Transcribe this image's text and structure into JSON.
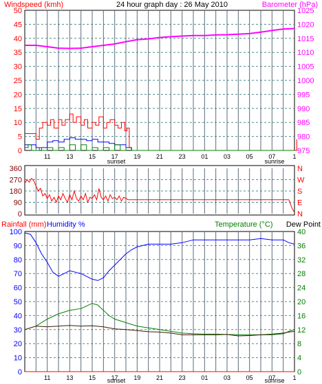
{
  "colors": {
    "red": "#ff0000",
    "magenta": "#ff00ff",
    "blue": "#0000ff",
    "green": "#008000",
    "darkred": "#800000",
    "brown": "#3a1a00",
    "grid_h": "#4a8a8a",
    "grid_v": "#5a6a7a",
    "black": "#000000"
  },
  "chart_data": [
    {
      "type": "line",
      "title": "24 hour graph day : 26 May 2010",
      "left_label": "Windspeed (kmh)",
      "right_label": "Barometer (hPa)",
      "ylim_left": [
        0,
        50
      ],
      "ylim_right": [
        975,
        1025
      ],
      "left_ticks": [
        "50",
        "45",
        "40",
        "35",
        "30",
        "25",
        "20",
        "15",
        "10",
        "5",
        "0"
      ],
      "right_ticks": [
        "1025",
        "1020",
        "1015",
        "1010",
        "1005",
        "1000",
        "995",
        "990",
        "985",
        "980",
        "975"
      ],
      "x_labels": [
        "11",
        "13",
        "15",
        "17",
        "19",
        "21",
        "23",
        "01",
        "03",
        "05",
        "07",
        "1"
      ],
      "sunset_label": "sunset",
      "sunrise_label": "sunrise",
      "series": [
        {
          "id": "barometer",
          "color": "magenta",
          "x": [
            9,
            10,
            11,
            12,
            13,
            14,
            15,
            16,
            17,
            18,
            19,
            20,
            21,
            22,
            23,
            24,
            25,
            26,
            27,
            28,
            29,
            30,
            31,
            32,
            33
          ],
          "y": [
            1012.5,
            1012.5,
            1012,
            1011.5,
            1011.4,
            1011.5,
            1012,
            1012.5,
            1013,
            1013.8,
            1014.5,
            1014.8,
            1015.3,
            1015.6,
            1015.8,
            1016,
            1016,
            1016.2,
            1016.3,
            1016.5,
            1016.7,
            1017.2,
            1017.8,
            1018.3,
            1018.5
          ]
        },
        {
          "id": "wind_gust",
          "color": "red",
          "x": [
            9,
            9.5,
            9.8,
            10,
            10.3,
            10.6,
            11,
            11.3,
            11.6,
            12,
            12.3,
            12.6,
            13,
            13.3,
            13.6,
            14,
            14.3,
            14.6,
            15,
            15.3,
            15.6,
            16,
            16.3,
            16.6,
            17,
            17.3,
            17.6,
            17.9,
            18.1,
            18.3,
            18.5,
            33,
            33.2
          ],
          "y": [
            6,
            6,
            6,
            4,
            8,
            10,
            9,
            11,
            8,
            11,
            9,
            11,
            13,
            10,
            12,
            9,
            11,
            8,
            10,
            9,
            12,
            8,
            10,
            11,
            9,
            8,
            10,
            7,
            8,
            1,
            0,
            0,
            4
          ]
        },
        {
          "id": "wind_avg",
          "color": "blue",
          "x": [
            9,
            9.5,
            10,
            10.5,
            11,
            11.5,
            12,
            12.5,
            13,
            13.5,
            14,
            14.5,
            15,
            15.5,
            16,
            16.5,
            17,
            17.5,
            18,
            18.5
          ],
          "y": [
            2,
            2,
            1,
            1,
            3,
            3.5,
            3,
            4,
            4.5,
            4,
            4,
            3.5,
            4,
            3,
            3,
            2.5,
            2,
            2,
            1,
            0
          ]
        },
        {
          "id": "wind_low",
          "color": "green",
          "x": [
            9,
            9.3,
            9.6,
            10,
            10.3,
            10.5,
            11,
            11.5,
            12,
            12.5,
            13,
            13.5,
            14,
            14.5,
            15,
            15.5,
            16,
            16.5,
            17,
            17.5,
            18,
            18.5,
            33
          ],
          "y": [
            1,
            2,
            0,
            0,
            1,
            0,
            1,
            0,
            1,
            0,
            2,
            0,
            2,
            0,
            1,
            0,
            1,
            0,
            2,
            0,
            1,
            0,
            0
          ]
        }
      ]
    },
    {
      "type": "line",
      "left_ticks": [
        "360",
        "270",
        "180",
        "90",
        "0"
      ],
      "right_ticks": [
        "N",
        "W",
        "S",
        "E",
        "N"
      ],
      "ylim": [
        0,
        360
      ],
      "series": [
        {
          "id": "wind_direction",
          "color": "red",
          "x": [
            9,
            9.2,
            9.4,
            9.6,
            9.8,
            10,
            10.2,
            10.4,
            10.6,
            10.8,
            11,
            11.2,
            11.4,
            11.6,
            11.8,
            12,
            12.2,
            12.4,
            12.6,
            12.8,
            13,
            13.2,
            13.4,
            13.6,
            13.8,
            14,
            14.2,
            14.4,
            14.6,
            14.8,
            15,
            15.2,
            15.4,
            15.6,
            15.8,
            16,
            16.2,
            16.4,
            16.6,
            16.8,
            17,
            17.2,
            17.4,
            17.6,
            17.8,
            18,
            18.2,
            32.5,
            32.8,
            33
          ],
          "y": [
            240,
            270,
            250,
            280,
            260,
            220,
            180,
            200,
            140,
            160,
            120,
            150,
            100,
            130,
            90,
            140,
            110,
            160,
            120,
            90,
            150,
            110,
            180,
            120,
            100,
            140,
            110,
            160,
            90,
            130,
            120,
            150,
            110,
            200,
            130,
            110,
            140,
            100,
            150,
            120,
            130,
            110,
            140,
            100,
            130,
            120,
            110,
            110,
            40,
            10
          ]
        }
      ]
    },
    {
      "type": "line",
      "left_label_1": "Rainfall (mm)",
      "left_label_2": "Humidity %",
      "right_label_1": "Temperature (°C)",
      "right_label_2": "Dew Point",
      "ylim_left": [
        0,
        100
      ],
      "ylim_right": [
        0,
        40
      ],
      "left_ticks": [
        "100",
        "90",
        "80",
        "70",
        "60",
        "50",
        "40",
        "30",
        "20",
        "10",
        "0"
      ],
      "right_ticks": [
        "40",
        "36",
        "32",
        "28",
        "24",
        "20",
        "16",
        "12",
        "8",
        "4",
        "0"
      ],
      "x_labels": [
        "11",
        "13",
        "15",
        "17",
        "19",
        "21",
        "23",
        "01",
        "03",
        "05",
        "07",
        "1"
      ],
      "sunset_label": "sunset",
      "sunrise_label": "sunrise",
      "series": [
        {
          "id": "humidity",
          "color": "blue",
          "x": [
            9,
            9.5,
            10,
            10.5,
            11,
            11.5,
            12,
            12.5,
            13,
            13.5,
            14,
            14.5,
            15,
            15.5,
            16,
            16.5,
            17,
            17.5,
            18,
            18.5,
            19,
            19.5,
            20,
            21,
            22,
            23,
            24,
            25,
            26,
            27,
            28,
            29,
            30,
            31,
            32,
            32.5,
            33
          ],
          "y": [
            99,
            98,
            92,
            84,
            78,
            71,
            68,
            70,
            72,
            71,
            70,
            68,
            66,
            65,
            67,
            72,
            76,
            80,
            84,
            87,
            89,
            90,
            91,
            91,
            91,
            92,
            94,
            94,
            94,
            94,
            94,
            94,
            95,
            94,
            94,
            92,
            91
          ]
        },
        {
          "id": "temperature",
          "color": "green",
          "x": [
            9,
            10,
            11,
            12,
            13,
            14,
            15,
            15.5,
            16,
            16.5,
            17,
            18,
            19,
            20,
            21,
            22,
            23,
            24,
            25,
            26,
            27,
            28,
            29,
            30,
            31,
            32,
            32.5,
            33
          ],
          "y": [
            12,
            13,
            15,
            16.5,
            17.5,
            18,
            19.5,
            19,
            17.5,
            16,
            15,
            14,
            13,
            12.5,
            12,
            11.5,
            11,
            10.8,
            10.7,
            10.7,
            10.6,
            10.5,
            10.5,
            10.5,
            10.5,
            10.8,
            11.5,
            12
          ]
        },
        {
          "id": "dew_point",
          "color": "brown",
          "x": [
            9,
            10,
            11,
            12,
            13,
            14,
            15,
            16,
            17,
            18,
            19,
            20,
            21,
            22,
            23,
            24,
            25,
            26,
            27,
            28,
            29,
            30,
            31,
            32,
            32.5,
            33
          ],
          "y": [
            12,
            13,
            12.8,
            13,
            13.2,
            13,
            13.1,
            12.8,
            12.2,
            12,
            11.7,
            11.4,
            11.3,
            11,
            10.5,
            10.5,
            10.5,
            10.5,
            10.6,
            10.2,
            10.3,
            10.5,
            10.7,
            11,
            11.3,
            11.5
          ]
        },
        {
          "id": "rainfall",
          "color": "red",
          "x": [
            9,
            33
          ],
          "y": [
            0,
            0
          ]
        }
      ]
    }
  ]
}
